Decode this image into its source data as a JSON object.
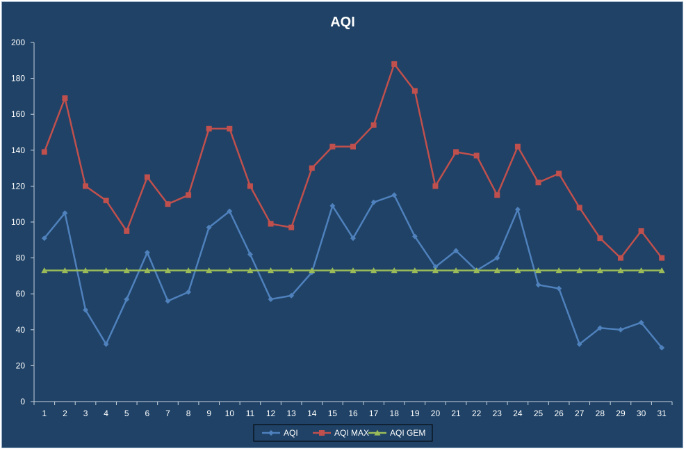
{
  "chart_data": {
    "type": "line",
    "title": "AQI",
    "xlabel": "",
    "ylabel": "",
    "x": [
      1,
      2,
      3,
      4,
      5,
      6,
      7,
      8,
      9,
      10,
      11,
      12,
      13,
      14,
      15,
      16,
      17,
      18,
      19,
      20,
      21,
      22,
      23,
      24,
      25,
      26,
      27,
      28,
      29,
      30,
      31
    ],
    "ylim": [
      0,
      200
    ],
    "yticks": [
      0,
      20,
      40,
      60,
      80,
      100,
      120,
      140,
      160,
      180,
      200
    ],
    "grid": false,
    "legend_position": "bottom",
    "series": [
      {
        "name": "AQI",
        "color": "#4f81bd",
        "marker": "diamond",
        "values": [
          91,
          105,
          51,
          32,
          57,
          83,
          56,
          61,
          97,
          106,
          82,
          57,
          59,
          72,
          109,
          91,
          111,
          115,
          92,
          75,
          84,
          73,
          80,
          107,
          65,
          63,
          32,
          41,
          40,
          44,
          30
        ]
      },
      {
        "name": "AQI MAX",
        "color": "#c0504d",
        "marker": "square",
        "values": [
          139,
          169,
          120,
          112,
          95,
          125,
          110,
          115,
          152,
          152,
          120,
          99,
          97,
          130,
          142,
          142,
          154,
          188,
          173,
          120,
          139,
          137,
          115,
          142,
          122,
          127,
          108,
          91,
          80,
          95,
          80
        ]
      },
      {
        "name": "AQI GEM",
        "color": "#9bbb59",
        "marker": "triangle",
        "values": [
          73,
          73,
          73,
          73,
          73,
          73,
          73,
          73,
          73,
          73,
          73,
          73,
          73,
          73,
          73,
          73,
          73,
          73,
          73,
          73,
          73,
          73,
          73,
          73,
          73,
          73,
          73,
          73,
          73,
          73,
          73
        ]
      }
    ]
  }
}
